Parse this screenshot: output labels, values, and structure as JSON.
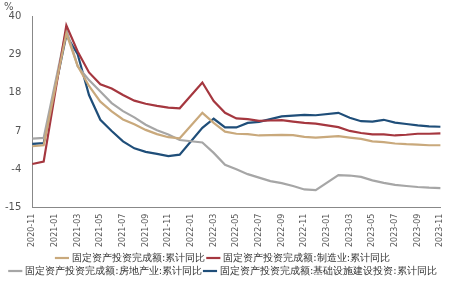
{
  "chart_data": {
    "type": "line",
    "y_label": "%",
    "categories": [
      "2020-11",
      null,
      "2021-01",
      null,
      "2021-03",
      null,
      "2021-05",
      null,
      "2021-07",
      null,
      "2021-09",
      null,
      "2021-11",
      null,
      "2022-01",
      null,
      "2022-03",
      null,
      "2022-05",
      null,
      "2022-07",
      null,
      "2022-09",
      null,
      "2022-11",
      null,
      "2023-01",
      null,
      "2023-03",
      null,
      "2023-05",
      null,
      "2023-07",
      null,
      "2023-09",
      null,
      "2023-11"
    ],
    "ylim": [
      -15,
      40
    ],
    "yticks": [
      -15,
      -4,
      7,
      18,
      29,
      40
    ],
    "grid": false,
    "legend": "bottom",
    "series": [
      {
        "name": "固定资产投资完成额:累计同比",
        "color": "#c9a97c",
        "values": [
          2.6,
          2.9,
          null,
          35.0,
          25.6,
          19.9,
          15.4,
          12.6,
          10.3,
          8.9,
          7.3,
          6.1,
          5.2,
          4.9,
          null,
          12.2,
          9.3,
          6.8,
          6.2,
          6.1,
          5.7,
          5.8,
          5.9,
          5.8,
          5.3,
          5.1,
          null,
          5.5,
          5.1,
          4.7,
          4.0,
          3.8,
          3.4,
          3.2,
          3.1,
          2.9,
          2.9
        ]
      },
      {
        "name": "固定资产投资完成额:制造业:累计同比",
        "color": "#a5373f",
        "values": [
          -2.5,
          -1.8,
          null,
          37.3,
          29.8,
          23.8,
          20.4,
          19.2,
          17.3,
          15.7,
          14.8,
          14.2,
          13.7,
          13.5,
          null,
          20.9,
          15.6,
          12.2,
          10.6,
          10.4,
          9.9,
          10.0,
          10.1,
          9.7,
          9.3,
          9.1,
          null,
          8.1,
          7.0,
          6.4,
          6.0,
          6.0,
          5.7,
          5.9,
          6.2,
          6.2,
          6.3
        ]
      },
      {
        "name": "固定资产投资完成额:房地产业:累计同比",
        "color": "#a6a6a6",
        "values": [
          4.8,
          5.0,
          null,
          36.0,
          25.6,
          21.6,
          18.3,
          15.0,
          12.7,
          10.9,
          8.8,
          7.2,
          6.0,
          4.4,
          null,
          3.7,
          0.7,
          -2.7,
          -4.0,
          -5.4,
          -6.4,
          -7.4,
          -8.0,
          -8.8,
          -9.8,
          -10.0,
          null,
          -5.7,
          -5.8,
          -6.2,
          -7.2,
          -7.9,
          -8.5,
          -8.8,
          -9.1,
          -9.3,
          -9.4
        ]
      },
      {
        "name": "固定资产投资完成额:基础设施建设投资:累计同比",
        "color": "#1f4e79",
        "values": [
          3.3,
          3.5,
          null,
          34.5,
          29.0,
          17.3,
          10.2,
          7.0,
          4.0,
          2.0,
          1.0,
          0.4,
          -0.2,
          0.2,
          null,
          7.9,
          10.5,
          8.0,
          8.0,
          9.3,
          9.6,
          10.4,
          11.2,
          11.4,
          11.6,
          11.5,
          null,
          12.2,
          10.8,
          9.8,
          9.7,
          10.2,
          9.4,
          9.0,
          8.6,
          8.3,
          8.2
        ]
      }
    ]
  }
}
